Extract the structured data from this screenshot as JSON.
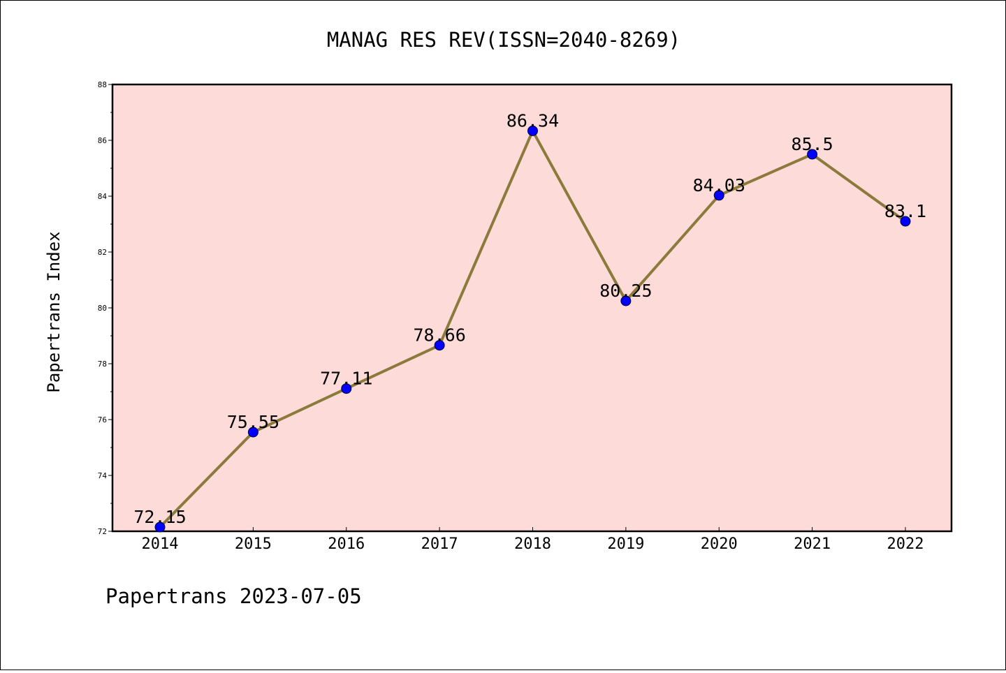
{
  "chart_data": {
    "type": "line",
    "title": "MANAG RES REV(ISSN=2040-8269)",
    "xlabel": "",
    "ylabel": "Papertrans Index",
    "categories": [
      "2014",
      "2015",
      "2016",
      "2017",
      "2018",
      "2019",
      "2020",
      "2021",
      "2022"
    ],
    "series": [
      {
        "values": [
          72.15,
          75.55,
          77.11,
          78.66,
          86.34,
          80.25,
          84.03,
          85.5,
          83.1
        ],
        "labels": [
          "72.15",
          "75.55",
          "77.11",
          "78.66",
          "86.34",
          "80.25",
          "84.03",
          "85.5",
          "83.1"
        ]
      }
    ],
    "ylim": [
      72,
      88
    ],
    "yticks": [
      "72",
      "74",
      "76",
      "78",
      "80",
      "82",
      "84",
      "86",
      "88"
    ],
    "grid": false,
    "legend": "none",
    "colors": {
      "plot_background": "#fddbd8",
      "line": "#8c7a3c",
      "marker": "#0000ff"
    }
  },
  "footer": "Papertrans 2023-07-05"
}
